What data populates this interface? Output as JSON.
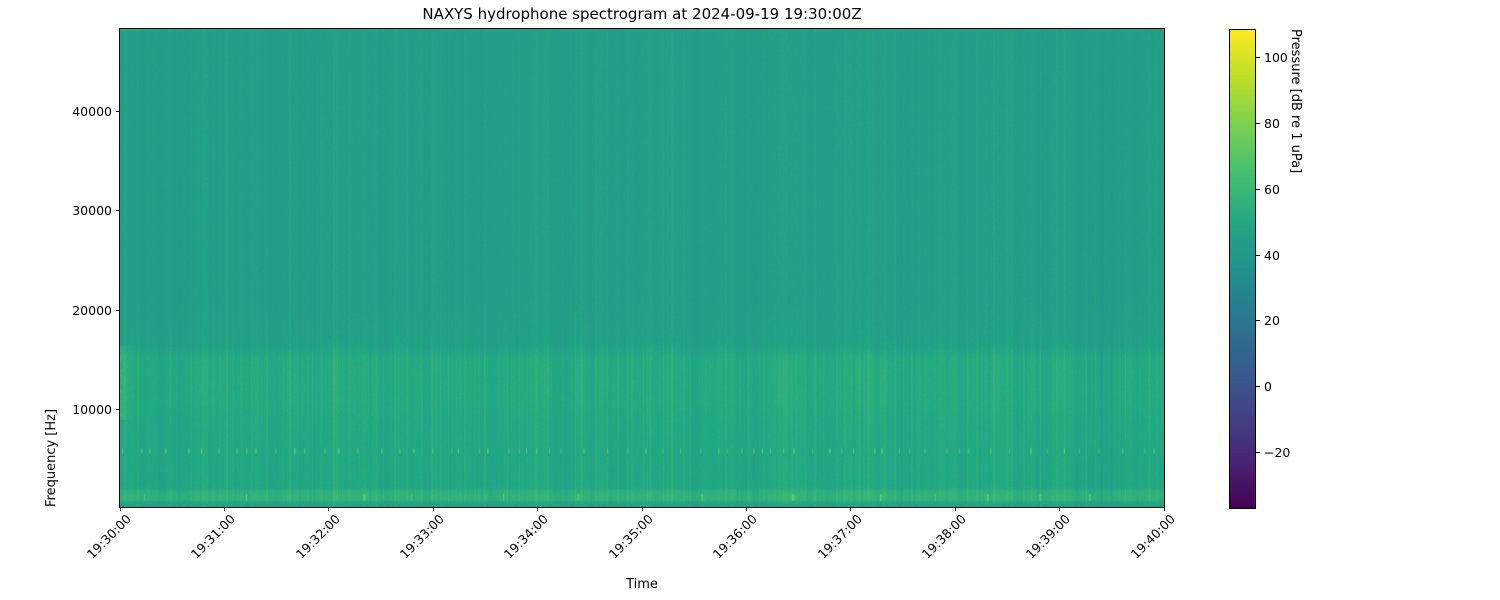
{
  "figure": {
    "background": "#ffffff",
    "spine_color": "#000000"
  },
  "chart_data": {
    "type": "heatmap",
    "title": "NAXYS hydrophone spectrogram at 2024-09-19 19:30:00Z",
    "xlabel": "Time",
    "ylabel": "Frequency [Hz]",
    "x_tick_labels": [
      "19:30:00",
      "19:31:00",
      "19:32:00",
      "19:33:00",
      "19:34:00",
      "19:35:00",
      "19:36:00",
      "19:37:00",
      "19:38:00",
      "19:39:00",
      "19:40:00"
    ],
    "x_range_seconds": [
      0,
      600
    ],
    "y_ticks": [
      10000,
      20000,
      30000,
      40000
    ],
    "y_tick_labels": [
      "10000",
      "20000",
      "30000",
      "40000"
    ],
    "y_range_hz": [
      250,
      48250
    ],
    "grid": false,
    "colormap": "viridis",
    "colorbar": {
      "label": "Pressure [dB re 1 uPa]",
      "ticks": [
        100,
        80,
        60,
        40,
        20,
        0,
        -20
      ],
      "tick_labels": [
        "100",
        "80",
        "60",
        "40",
        "20",
        "0",
        "−20"
      ],
      "vmin": -37,
      "vmax": 108.5,
      "position": "right"
    },
    "field_description": "Mostly uniform teal background (~45 dB) above 16 kHz; brighter green levels (~50-52 dB) from 2-16 kHz with dense vertical broadband striations; periodic bright tonal dots near 5.9 kHz; bright band (~55-57 dB) near 1-1.6 kHz with intermittent hot spots; slightly darker below 700 Hz.",
    "db_profile_points": [
      [
        48250,
        45.0
      ],
      [
        21000,
        45.0
      ],
      [
        16500,
        46.0
      ],
      [
        15200,
        51.5
      ],
      [
        10800,
        51.5
      ],
      [
        9000,
        50.5
      ],
      [
        6500,
        50.0
      ],
      [
        2300,
        49.5
      ],
      [
        1900,
        54.0
      ],
      [
        1500,
        57.0
      ],
      [
        1000,
        56.0
      ],
      [
        800,
        50.0
      ],
      [
        600,
        47.5
      ],
      [
        250,
        46.5
      ]
    ],
    "striation_profile_points": [
      [
        48250,
        1.0
      ],
      [
        17000,
        1.3
      ],
      [
        15500,
        2.6
      ],
      [
        10500,
        2.4
      ],
      [
        6000,
        2.1
      ],
      [
        2000,
        2.4
      ],
      [
        1200,
        2.6
      ],
      [
        250,
        1.5
      ]
    ],
    "tonal_dots": {
      "center_hz": 5900,
      "half_width_hz": 280,
      "mean_spacing_s": 9,
      "boost_db_min": 12,
      "boost_db_max": 28
    },
    "low_band_spots": {
      "f_lo_hz": 950,
      "f_hi_hz": 1650,
      "boost_db_min": 8,
      "boost_db_max": 18
    },
    "left_edge_burst": {
      "f_lo_hz": 9000,
      "f_hi_hz": 16500,
      "boost_db": 6,
      "width_s": 8
    },
    "top_left_streak": {
      "f_lo_hz": 47600,
      "boost_db": 9,
      "width_s": 30
    }
  }
}
